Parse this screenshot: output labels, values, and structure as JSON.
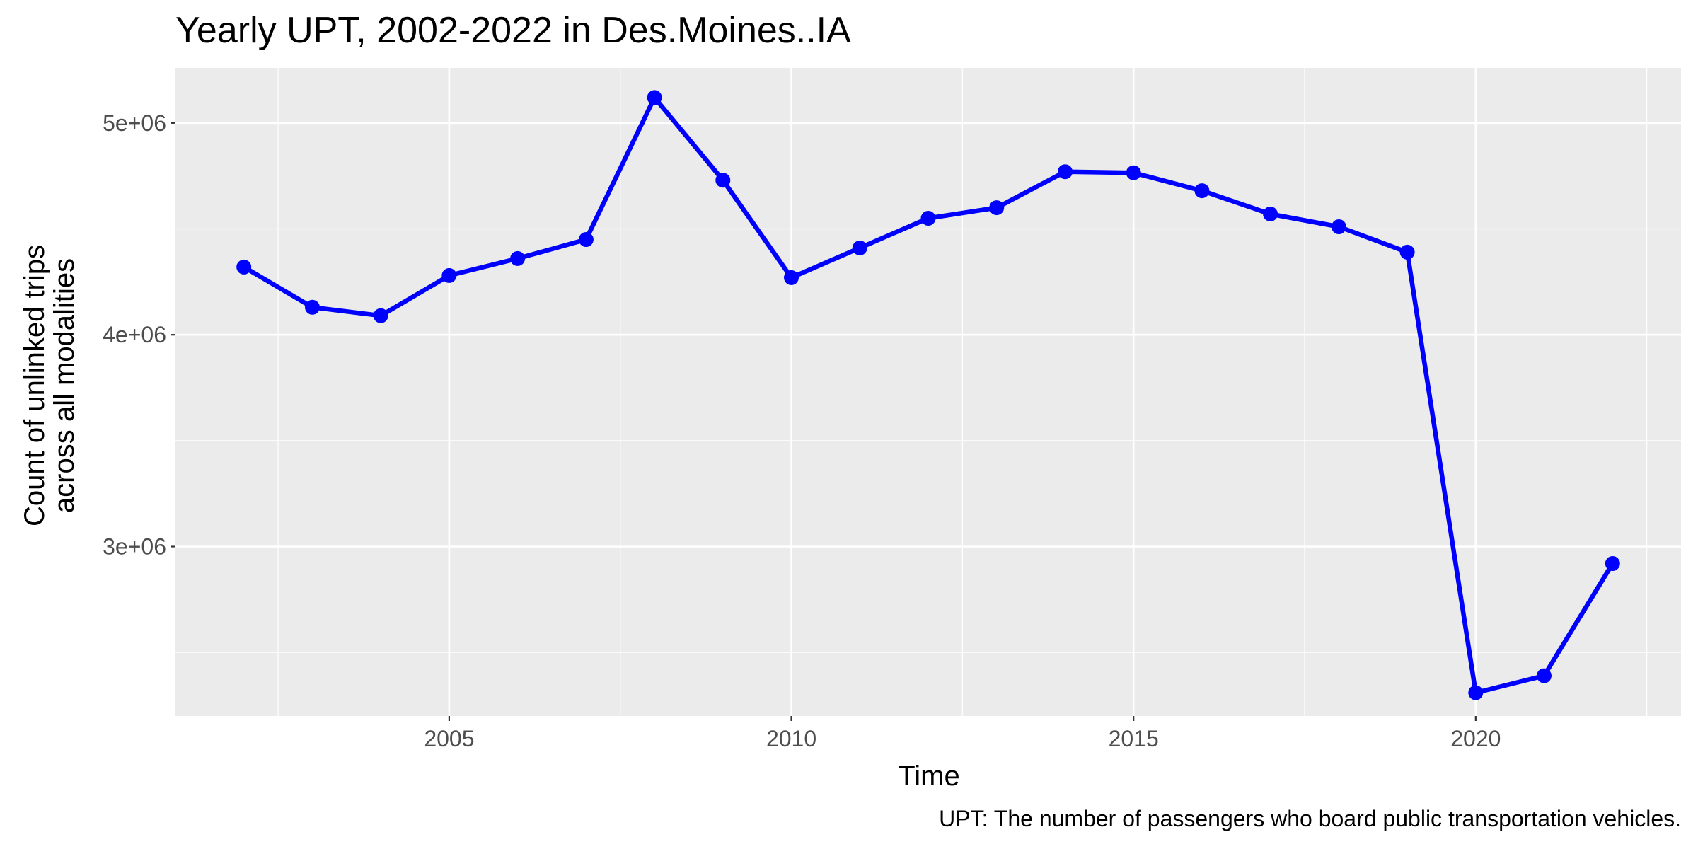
{
  "chart_data": {
    "type": "line",
    "title": "Yearly UPT, 2002-2022 in Des.Moines..IA",
    "xlabel": "Time",
    "ylabel_lines": [
      "Count of unlinked trips",
      "across all modalities"
    ],
    "caption": "UPT: The number of passengers who board public transportation vehicles.",
    "x_ticks": [
      2005,
      2010,
      2015,
      2020
    ],
    "x_tick_labels": [
      "2005",
      "2010",
      "2015",
      "2020"
    ],
    "y_ticks": [
      3000000,
      4000000,
      5000000
    ],
    "y_tick_labels": [
      "3e+06",
      "4e+06",
      "5e+06"
    ],
    "xlim": [
      2001,
      2023
    ],
    "ylim": [
      2200000,
      5260000
    ],
    "grid": true,
    "legend": "none",
    "line_color": "#0000ff",
    "panel_background": "#ebebeb",
    "series": [
      {
        "x": [
          2002,
          2003,
          2004,
          2005,
          2006,
          2007,
          2008,
          2009,
          2010,
          2011,
          2012,
          2013,
          2014,
          2015,
          2016,
          2017,
          2018,
          2019,
          2020,
          2021,
          2022
        ],
        "values": [
          4320000,
          4130000,
          4090000,
          4280000,
          4360000,
          4450000,
          5120000,
          4730000,
          4270000,
          4410000,
          4550000,
          4600000,
          4770000,
          4765000,
          4680000,
          4570000,
          4510000,
          4390000,
          2310000,
          2390000,
          2920000
        ]
      }
    ]
  }
}
